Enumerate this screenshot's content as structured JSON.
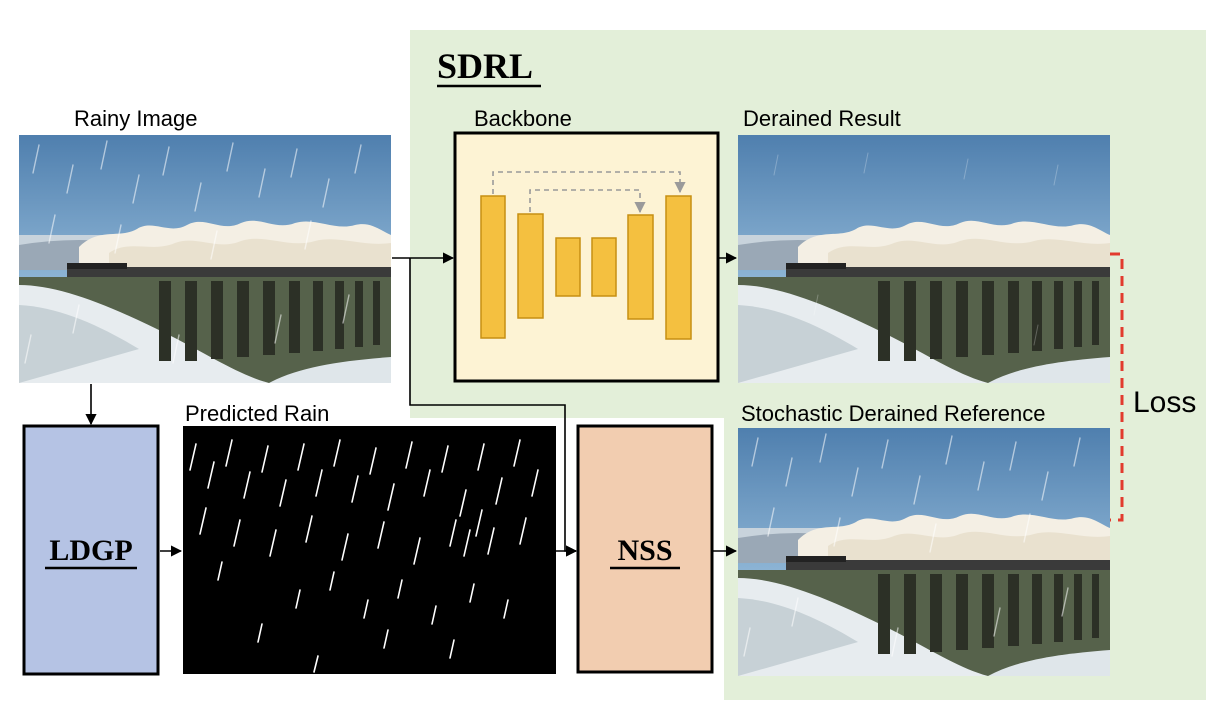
{
  "labels": {
    "rainy_image": "Rainy Image",
    "backbone": "Backbone",
    "derained_result": "Derained Result",
    "predicted_rain": "Predicted Rain",
    "stochastic_reference": "Stochastic Derained Reference",
    "loss": "Loss"
  },
  "modules": {
    "sdrl": "SDRL",
    "ldgp": "LDGP",
    "nss": "NSS"
  },
  "colors": {
    "sdrl_region": "#e3efd9",
    "backbone_fill": "#fdf3d4",
    "unet_block": "#f4c040",
    "unet_block_border": "#c68f12",
    "ldgp_fill": "#b5c3e4",
    "nss_fill": "#f2cdb0",
    "loss_dash": "#e23b2e",
    "skip_arrow": "#9a9a9a",
    "sky": "#7fa9cc",
    "rain_canvas": "#000000"
  }
}
